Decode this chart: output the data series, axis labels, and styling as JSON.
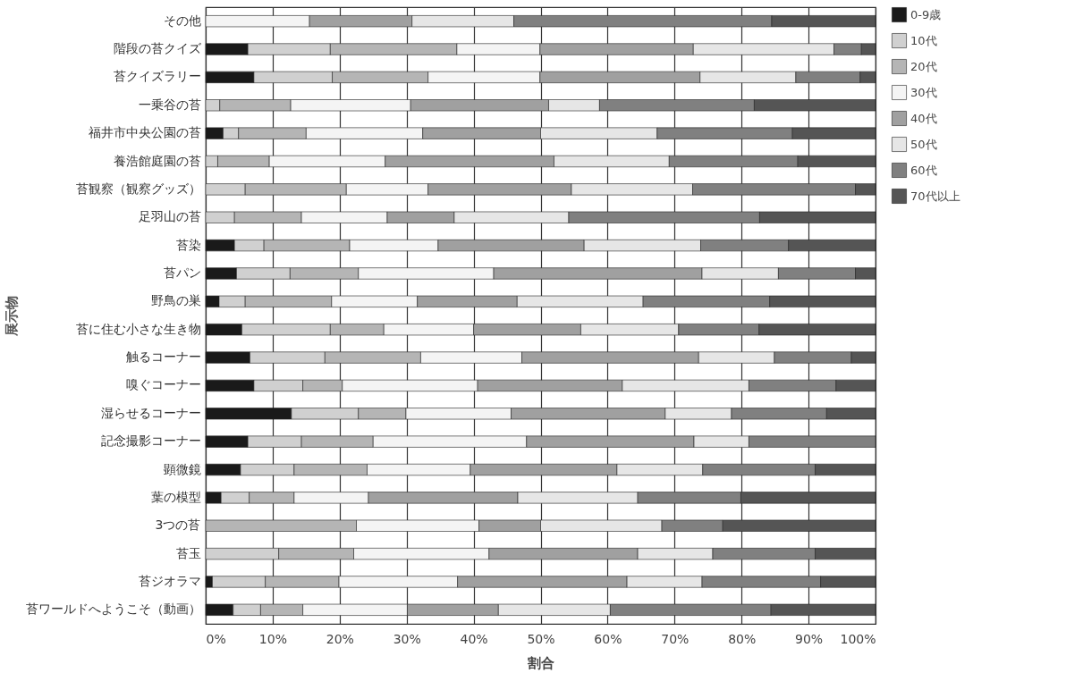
{
  "chart_data": {
    "type": "bar",
    "orientation": "horizontal",
    "stacked": true,
    "xlabel": "割合",
    "ylabel": "展示物",
    "categories": [
      "その他",
      "階段の苔クイズ",
      "苔クイズラリー",
      "一乗谷の苔",
      "福井市中央公園の苔",
      "養浩館庭園の苔",
      "苔観察（観察グッズ）",
      "足羽山の苔",
      "苔染",
      "苔パン",
      "野鳥の巣",
      "苔に住む小さな生き物",
      "触るコーナー",
      "嗅ぐコーナー",
      "湿らせるコーナー",
      "記念撮影コーナー",
      "顕微鏡",
      "葉の模型",
      "3つの苔",
      "苔玉",
      "苔ジオラマ",
      "苔ワールドへようこそ（動画）"
    ],
    "series": [
      {
        "name": "0-9歳",
        "color": "#1a1a1a",
        "values": [
          0,
          6.3,
          7.2,
          0,
          2.6,
          0,
          0,
          0,
          4.3,
          4.6,
          2.0,
          5.4,
          6.6,
          7.2,
          12.8,
          6.3,
          5.2,
          2.3,
          0,
          0,
          1.0,
          4.1
        ]
      },
      {
        "name": "10代",
        "color": "#d0d0d0",
        "values": [
          0,
          12.3,
          11.7,
          2.1,
          2.3,
          1.8,
          5.9,
          4.3,
          4.4,
          8.0,
          3.9,
          13.2,
          11.2,
          7.3,
          10.0,
          8.0,
          8.0,
          4.2,
          0,
          10.9,
          7.9,
          4.1
        ]
      },
      {
        "name": "20代",
        "color": "#b5b5b5",
        "values": [
          0,
          18.9,
          14.3,
          10.6,
          10.1,
          7.7,
          15.1,
          10.0,
          12.8,
          10.2,
          12.9,
          8.0,
          14.3,
          5.9,
          7.1,
          10.7,
          10.9,
          6.7,
          22.5,
          11.2,
          11.0,
          6.3
        ]
      },
      {
        "name": "30代",
        "color": "#f4f4f4",
        "values": [
          15.5,
          12.4,
          16.7,
          17.9,
          17.4,
          17.3,
          12.2,
          12.8,
          13.2,
          20.2,
          12.8,
          13.4,
          15.1,
          20.2,
          15.7,
          22.9,
          15.4,
          11.1,
          18.3,
          20.2,
          17.7,
          15.6
        ]
      },
      {
        "name": "40代",
        "color": "#a0a0a0",
        "values": [
          15.3,
          22.9,
          23.9,
          20.6,
          17.6,
          25.2,
          21.4,
          10.0,
          21.8,
          31.1,
          14.9,
          16.0,
          26.4,
          21.6,
          23.0,
          25.0,
          21.9,
          22.3,
          9.2,
          22.2,
          25.3,
          13.6
        ]
      },
      {
        "name": "50代",
        "color": "#e6e6e6",
        "values": [
          15.2,
          21.0,
          14.3,
          7.6,
          17.4,
          17.2,
          18.1,
          17.1,
          17.4,
          11.4,
          18.8,
          14.6,
          11.3,
          18.9,
          9.9,
          8.2,
          12.8,
          17.9,
          18.1,
          11.2,
          11.2,
          16.7
        ]
      },
      {
        "name": "60代",
        "color": "#808080",
        "values": [
          38.5,
          4.1,
          9.6,
          23.1,
          20.2,
          19.2,
          24.3,
          28.5,
          13.1,
          11.5,
          18.9,
          12.0,
          11.5,
          13.0,
          14.2,
          18.9,
          16.8,
          15.4,
          9.1,
          15.3,
          17.7,
          24.0
        ]
      },
      {
        "name": "70代以上",
        "color": "#555555",
        "values": [
          15.5,
          2.1,
          2.3,
          18.1,
          12.4,
          11.6,
          3.0,
          17.3,
          13.0,
          3.0,
          15.8,
          17.4,
          3.6,
          5.9,
          7.3,
          0,
          9.0,
          20.1,
          22.8,
          9.0,
          8.2,
          15.6
        ]
      }
    ],
    "xlim": [
      0,
      100
    ],
    "xticks": [
      {
        "value": 0,
        "label": "0%"
      },
      {
        "value": 10,
        "label": "10%"
      },
      {
        "value": 20,
        "label": "20%"
      },
      {
        "value": 30,
        "label": "30%"
      },
      {
        "value": 40,
        "label": "40%"
      },
      {
        "value": 50,
        "label": "50%"
      },
      {
        "value": 60,
        "label": "60%"
      },
      {
        "value": 70,
        "label": "70%"
      },
      {
        "value": 80,
        "label": "80%"
      },
      {
        "value": 90,
        "label": "90%"
      },
      {
        "value": 100,
        "label": "100%"
      }
    ],
    "grid": "x",
    "legend": "right"
  }
}
